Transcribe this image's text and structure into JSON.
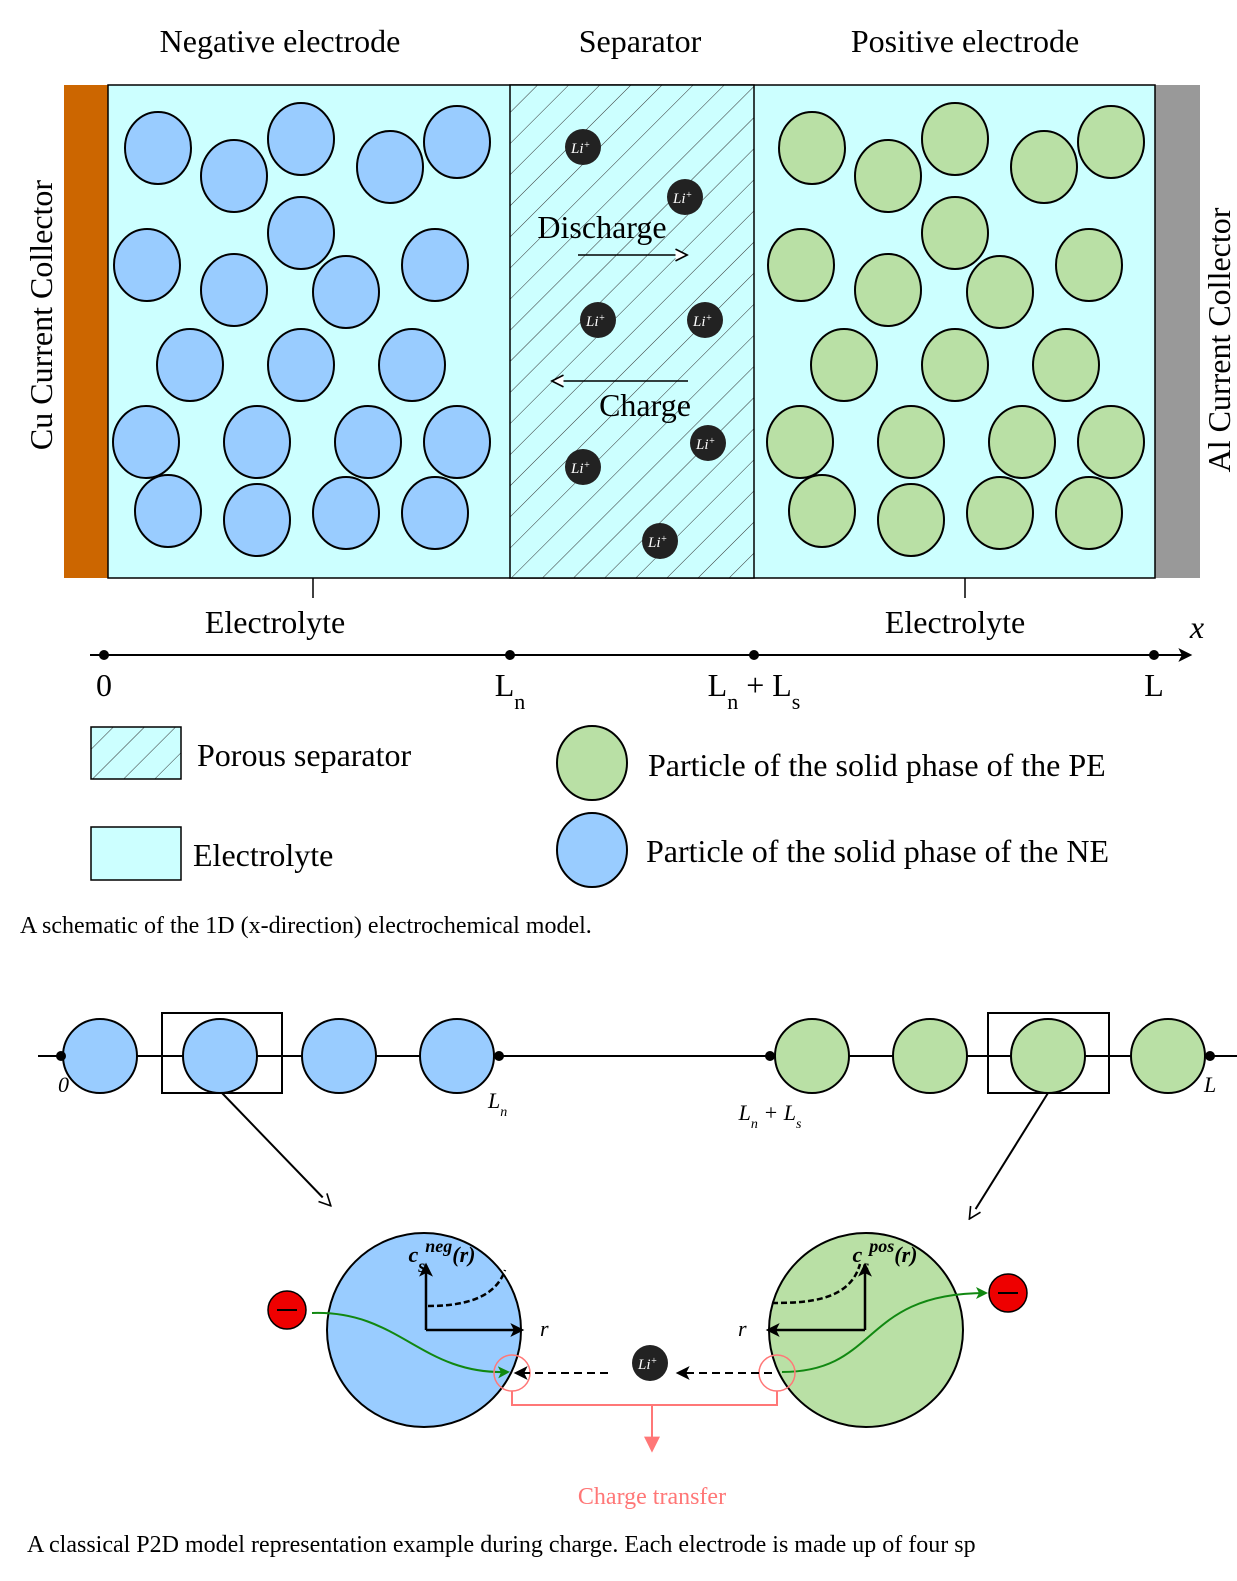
{
  "figure1": {
    "headers": [
      "Negative electrode",
      "Separator",
      "Positive electrode"
    ],
    "cu_collector": "Cu Current Collector",
    "al_collector": "Al Current Collector",
    "discharge": "Discharge",
    "charge": "Charge",
    "li_ion": [
      {
        "t": "Li"
      },
      {
        "sup": "+"
      }
    ],
    "electrolyte_labels": [
      "Electrolyte",
      "Electrolyte"
    ],
    "axis_symbol": "x",
    "axis_labels": [
      [
        {
          "t": "0"
        }
      ],
      [
        {
          "t": "L"
        },
        {
          "sub": "n"
        }
      ],
      [
        {
          "t": "L"
        },
        {
          "sub": "n"
        },
        {
          "t": " + L"
        },
        {
          "sub": "s"
        }
      ],
      [
        {
          "t": "L"
        }
      ]
    ],
    "legend": [
      "Porous separator",
      "Electrolyte",
      "Particle of the solid phase of the PE",
      "Particle of the solid phase of the NE"
    ],
    "caption": "A schematic of the 1D (x-direction) electrochemical model."
  },
  "figure2": {
    "axis_labels": [
      [
        {
          "t": "0"
        }
      ],
      [
        {
          "t": "L"
        },
        {
          "sub": "n"
        }
      ],
      [
        {
          "t": "L"
        },
        {
          "sub": "n"
        },
        {
          "t": " + L"
        },
        {
          "sub": "s"
        }
      ],
      [
        {
          "t": "L"
        }
      ]
    ],
    "c_neg": [
      {
        "t": "c"
      },
      {
        "sub": "s"
      },
      {
        "sup": "neg"
      },
      {
        "t": "(r)"
      }
    ],
    "c_pos": [
      {
        "t": "c"
      },
      {
        "sub": "s"
      },
      {
        "sup": "pos"
      },
      {
        "t": "(r)"
      }
    ],
    "radius_labels": [
      "r",
      "r"
    ],
    "li_ion": [
      {
        "t": "Li"
      },
      {
        "sup": "+"
      }
    ],
    "charge_transfer": "Charge transfer",
    "caption": "A classical P2D model representation example during charge. Each electrode is made up of four sp"
  }
}
